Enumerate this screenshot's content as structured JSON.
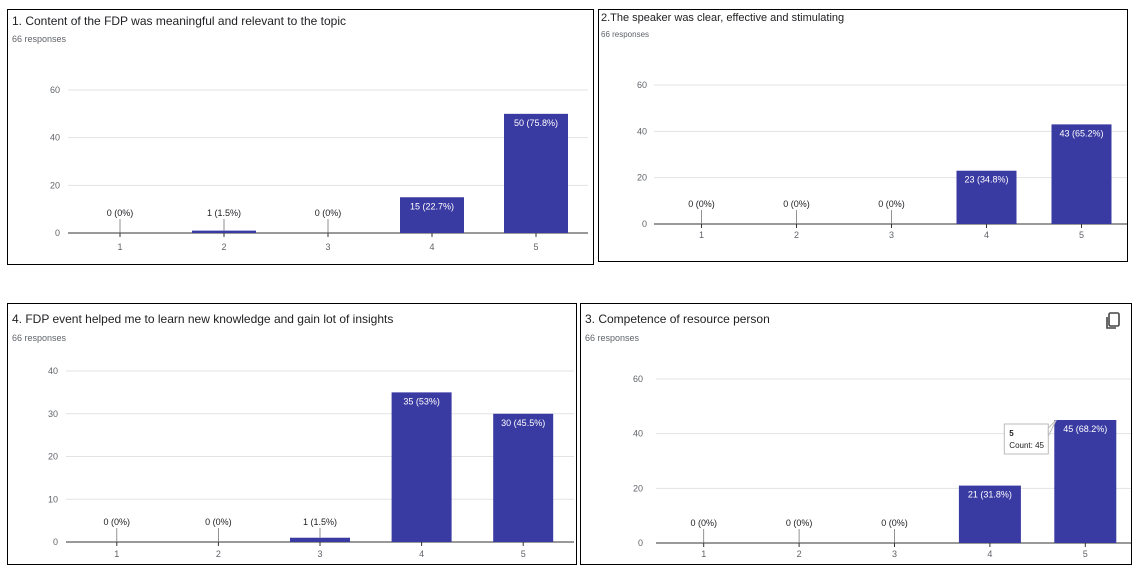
{
  "accent": "#3a3aa3",
  "icons": {
    "copy": "copy-icon"
  },
  "chart_data": [
    {
      "type": "bar",
      "title": "1. Content of the FDP was meaningful and relevant to the topic",
      "subtitle": "66 responses",
      "categories": [
        "1",
        "2",
        "3",
        "4",
        "5"
      ],
      "values": [
        0,
        1,
        0,
        15,
        50
      ],
      "data_labels": [
        "0 (0%)",
        "1 (1.5%)",
        "0 (0%)",
        "15 (22.7%)",
        "50 (75.8%)"
      ],
      "yticks": [
        "0",
        "20",
        "40",
        "60"
      ],
      "ylim": [
        0,
        60
      ],
      "grid": true,
      "color": "#3a3aa3"
    },
    {
      "type": "bar",
      "title": "2.The speaker was clear, effective and stimulating",
      "subtitle": "66 responses",
      "categories": [
        "1",
        "2",
        "3",
        "4",
        "5"
      ],
      "values": [
        0,
        0,
        0,
        23,
        43
      ],
      "data_labels": [
        "0 (0%)",
        "0 (0%)",
        "0 (0%)",
        "23 (34.8%)",
        "43 (65.2%)"
      ],
      "yticks": [
        "0",
        "20",
        "40",
        "60"
      ],
      "ylim": [
        0,
        60
      ],
      "grid": true,
      "color": "#3a3aa3"
    },
    {
      "type": "bar",
      "title": "4. FDP event helped me to learn new knowledge and gain lot of insights",
      "subtitle": "66 responses",
      "categories": [
        "1",
        "2",
        "3",
        "4",
        "5"
      ],
      "values": [
        0,
        0,
        1,
        35,
        30
      ],
      "data_labels": [
        "0 (0%)",
        "0 (0%)",
        "1 (1.5%)",
        "35 (53%)",
        "30 (45.5%)"
      ],
      "yticks": [
        "0",
        "10",
        "20",
        "30",
        "40"
      ],
      "ylim": [
        0,
        40
      ],
      "grid": true,
      "color": "#3a3aa3"
    },
    {
      "type": "bar",
      "title": "3. Competence of resource person",
      "subtitle": "66 responses",
      "categories": [
        "1",
        "2",
        "3",
        "4",
        "5"
      ],
      "values": [
        0,
        0,
        0,
        21,
        45
      ],
      "data_labels": [
        "0 (0%)",
        "0 (0%)",
        "0 (0%)",
        "21 (31.8%)",
        "45 (68.2%)"
      ],
      "yticks": [
        "0",
        "20",
        "40",
        "60"
      ],
      "ylim": [
        0,
        60
      ],
      "grid": true,
      "color": "#3a3aa3",
      "tooltip": {
        "category": "5",
        "label": "Count: 45"
      }
    }
  ]
}
